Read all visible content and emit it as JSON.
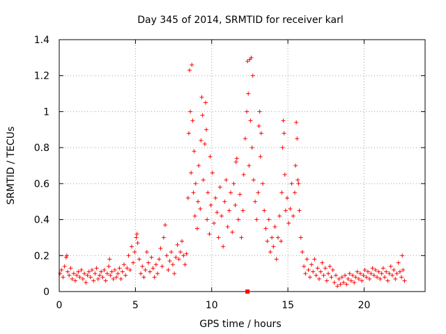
{
  "chart_data": {
    "type": "scatter",
    "title": "Day 345 of 2014, SRMTID for receiver karl",
    "xlabel": "GPS time / hours",
    "ylabel": "SRMTID / TECUs",
    "xlim": [
      0,
      24
    ],
    "ylim": [
      0,
      1.4
    ],
    "xticks": [
      0,
      5,
      10,
      15,
      20
    ],
    "yticks": [
      0,
      0.2,
      0.4,
      0.6,
      0.8,
      1.0,
      1.2,
      1.4
    ],
    "xtick_labels": [
      "0",
      "5",
      "10",
      "15",
      "20"
    ],
    "ytick_labels": [
      "0",
      "0.2",
      "0.4",
      "0.6",
      "0.8",
      "1",
      "1.2",
      "1.4"
    ],
    "grid": true,
    "marker": "+",
    "color": "#ff0000",
    "series": [
      {
        "name": "SRMTID",
        "points": [
          [
            0.05,
            0.1
          ],
          [
            0.15,
            0.12
          ],
          [
            0.25,
            0.08
          ],
          [
            0.35,
            0.14
          ],
          [
            0.45,
            0.19
          ],
          [
            0.5,
            0.2
          ],
          [
            0.55,
            0.11
          ],
          [
            0.65,
            0.09
          ],
          [
            0.75,
            0.13
          ],
          [
            0.85,
            0.07
          ],
          [
            0.95,
            0.1
          ],
          [
            1.05,
            0.06
          ],
          [
            1.15,
            0.09
          ],
          [
            1.25,
            0.11
          ],
          [
            1.35,
            0.08
          ],
          [
            1.45,
            0.12
          ],
          [
            1.55,
            0.07
          ],
          [
            1.65,
            0.1
          ],
          [
            1.75,
            0.05
          ],
          [
            1.85,
            0.09
          ],
          [
            1.95,
            0.11
          ],
          [
            2.05,
            0.08
          ],
          [
            2.15,
            0.12
          ],
          [
            2.25,
            0.06
          ],
          [
            2.35,
            0.1
          ],
          [
            2.45,
            0.13
          ],
          [
            2.55,
            0.07
          ],
          [
            2.65,
            0.09
          ],
          [
            2.75,
            0.11
          ],
          [
            2.85,
            0.08
          ],
          [
            2.95,
            0.12
          ],
          [
            3.05,
            0.06
          ],
          [
            3.15,
            0.1
          ],
          [
            3.25,
            0.14
          ],
          [
            3.3,
            0.18
          ],
          [
            3.35,
            0.09
          ],
          [
            3.45,
            0.11
          ],
          [
            3.55,
            0.07
          ],
          [
            3.65,
            0.12
          ],
          [
            3.75,
            0.08
          ],
          [
            3.85,
            0.1
          ],
          [
            3.95,
            0.13
          ],
          [
            4.05,
            0.07
          ],
          [
            4.15,
            0.11
          ],
          [
            4.25,
            0.15
          ],
          [
            4.35,
            0.09
          ],
          [
            4.45,
            0.13
          ],
          [
            4.55,
            0.2
          ],
          [
            4.65,
            0.12
          ],
          [
            4.75,
            0.25
          ],
          [
            4.85,
            0.16
          ],
          [
            4.95,
            0.22
          ],
          [
            5.05,
            0.3
          ],
          [
            5.1,
            0.32
          ],
          [
            5.15,
            0.27
          ],
          [
            5.25,
            0.18
          ],
          [
            5.35,
            0.1
          ],
          [
            5.45,
            0.14
          ],
          [
            5.55,
            0.08
          ],
          [
            5.65,
            0.12
          ],
          [
            5.75,
            0.22
          ],
          [
            5.85,
            0.16
          ],
          [
            5.95,
            0.11
          ],
          [
            6.05,
            0.19
          ],
          [
            6.15,
            0.13
          ],
          [
            6.25,
            0.08
          ],
          [
            6.35,
            0.15
          ],
          [
            6.45,
            0.1
          ],
          [
            6.55,
            0.18
          ],
          [
            6.65,
            0.24
          ],
          [
            6.75,
            0.14
          ],
          [
            6.85,
            0.3
          ],
          [
            6.95,
            0.37
          ],
          [
            7.05,
            0.2
          ],
          [
            7.15,
            0.12
          ],
          [
            7.25,
            0.17
          ],
          [
            7.35,
            0.22
          ],
          [
            7.45,
            0.15
          ],
          [
            7.55,
            0.1
          ],
          [
            7.65,
            0.19
          ],
          [
            7.75,
            0.26
          ],
          [
            7.85,
            0.18
          ],
          [
            7.95,
            0.22
          ],
          [
            8.05,
            0.28
          ],
          [
            8.15,
            0.2
          ],
          [
            8.25,
            0.15
          ],
          [
            8.35,
            0.21
          ],
          [
            8.45,
            0.52
          ],
          [
            8.5,
            0.88
          ],
          [
            8.55,
            1.23
          ],
          [
            8.6,
            1.0
          ],
          [
            8.65,
            0.66
          ],
          [
            8.7,
            1.26
          ],
          [
            8.75,
            0.95
          ],
          [
            8.8,
            0.55
          ],
          [
            8.85,
            0.78
          ],
          [
            8.9,
            0.42
          ],
          [
            8.95,
            0.6
          ],
          [
            9.05,
            0.35
          ],
          [
            9.1,
            0.5
          ],
          [
            9.15,
            0.7
          ],
          [
            9.25,
            0.46
          ],
          [
            9.3,
            0.84
          ],
          [
            9.35,
            1.08
          ],
          [
            9.4,
            0.98
          ],
          [
            9.45,
            0.62
          ],
          [
            9.55,
            0.82
          ],
          [
            9.6,
            1.05
          ],
          [
            9.65,
            0.9
          ],
          [
            9.7,
            0.4
          ],
          [
            9.75,
            0.55
          ],
          [
            9.85,
            0.32
          ],
          [
            9.9,
            0.75
          ],
          [
            9.95,
            0.48
          ],
          [
            10.05,
            0.66
          ],
          [
            10.15,
            0.38
          ],
          [
            10.25,
            0.52
          ],
          [
            10.35,
            0.44
          ],
          [
            10.45,
            0.3
          ],
          [
            10.55,
            0.58
          ],
          [
            10.65,
            0.42
          ],
          [
            10.75,
            0.25
          ],
          [
            10.85,
            0.5
          ],
          [
            10.95,
            0.62
          ],
          [
            11.05,
            0.36
          ],
          [
            11.15,
            0.45
          ],
          [
            11.25,
            0.55
          ],
          [
            11.35,
            0.33
          ],
          [
            11.45,
            0.6
          ],
          [
            11.55,
            0.48
          ],
          [
            11.6,
            0.72
          ],
          [
            11.65,
            0.74
          ],
          [
            11.75,
            0.4
          ],
          [
            11.85,
            0.54
          ],
          [
            11.95,
            0.3
          ],
          [
            12.05,
            0.45
          ],
          [
            12.1,
            0.65
          ],
          [
            12.2,
            0.85
          ],
          [
            12.3,
            1.0
          ],
          [
            12.35,
            1.28
          ],
          [
            12.4,
            1.1
          ],
          [
            12.45,
            0.7
          ],
          [
            12.5,
            1.29
          ],
          [
            12.55,
            0.95
          ],
          [
            12.6,
            1.3
          ],
          [
            12.65,
            0.8
          ],
          [
            12.7,
            1.2
          ],
          [
            12.75,
            0.62
          ],
          [
            12.85,
            0.5
          ],
          [
            12.95,
            0.4
          ],
          [
            13.05,
            0.55
          ],
          [
            13.1,
            0.92
          ],
          [
            13.15,
            1.0
          ],
          [
            13.2,
            0.75
          ],
          [
            13.25,
            0.88
          ],
          [
            13.35,
            0.6
          ],
          [
            13.45,
            0.45
          ],
          [
            13.55,
            0.35
          ],
          [
            13.65,
            0.28
          ],
          [
            13.75,
            0.4
          ],
          [
            13.85,
            0.22
          ],
          [
            13.95,
            0.3
          ],
          [
            14.05,
            0.25
          ],
          [
            14.15,
            0.36
          ],
          [
            14.25,
            0.18
          ],
          [
            14.35,
            0.3
          ],
          [
            14.45,
            0.42
          ],
          [
            14.55,
            0.28
          ],
          [
            14.6,
            0.55
          ],
          [
            14.65,
            0.8
          ],
          [
            14.7,
            0.95
          ],
          [
            14.75,
            0.88
          ],
          [
            14.8,
            0.65
          ],
          [
            14.85,
            0.45
          ],
          [
            14.95,
            0.52
          ],
          [
            15.05,
            0.38
          ],
          [
            15.15,
            0.46
          ],
          [
            15.25,
            0.6
          ],
          [
            15.35,
            0.42
          ],
          [
            15.45,
            0.55
          ],
          [
            15.5,
            0.7
          ],
          [
            15.55,
            0.94
          ],
          [
            15.6,
            0.85
          ],
          [
            15.65,
            0.62
          ],
          [
            15.7,
            0.6
          ],
          [
            15.75,
            0.45
          ],
          [
            15.85,
            0.3
          ],
          [
            15.95,
            0.22
          ],
          [
            16.05,
            0.14
          ],
          [
            16.15,
            0.1
          ],
          [
            16.25,
            0.18
          ],
          [
            16.35,
            0.12
          ],
          [
            16.45,
            0.08
          ],
          [
            16.55,
            0.15
          ],
          [
            16.65,
            0.11
          ],
          [
            16.75,
            0.18
          ],
          [
            16.85,
            0.09
          ],
          [
            16.95,
            0.13
          ],
          [
            17.05,
            0.07
          ],
          [
            17.15,
            0.11
          ],
          [
            17.25,
            0.16
          ],
          [
            17.35,
            0.09
          ],
          [
            17.45,
            0.13
          ],
          [
            17.55,
            0.06
          ],
          [
            17.65,
            0.1
          ],
          [
            17.75,
            0.14
          ],
          [
            17.85,
            0.08
          ],
          [
            17.95,
            0.12
          ],
          [
            18.05,
            0.05
          ],
          [
            18.15,
            0.09
          ],
          [
            18.25,
            0.03
          ],
          [
            18.35,
            0.07
          ],
          [
            18.45,
            0.04
          ],
          [
            18.55,
            0.08
          ],
          [
            18.65,
            0.05
          ],
          [
            18.75,
            0.09
          ],
          [
            18.85,
            0.04
          ],
          [
            18.95,
            0.07
          ],
          [
            19.05,
            0.1
          ],
          [
            19.15,
            0.06
          ],
          [
            19.25,
            0.09
          ],
          [
            19.35,
            0.05
          ],
          [
            19.45,
            0.08
          ],
          [
            19.55,
            0.11
          ],
          [
            19.65,
            0.07
          ],
          [
            19.75,
            0.1
          ],
          [
            19.85,
            0.06
          ],
          [
            19.95,
            0.09
          ],
          [
            20.05,
            0.12
          ],
          [
            20.15,
            0.08
          ],
          [
            20.25,
            0.11
          ],
          [
            20.35,
            0.07
          ],
          [
            20.45,
            0.1
          ],
          [
            20.55,
            0.13
          ],
          [
            20.65,
            0.09
          ],
          [
            20.75,
            0.12
          ],
          [
            20.85,
            0.08
          ],
          [
            20.95,
            0.11
          ],
          [
            21.05,
            0.07
          ],
          [
            21.15,
            0.1
          ],
          [
            21.25,
            0.13
          ],
          [
            21.35,
            0.08
          ],
          [
            21.45,
            0.11
          ],
          [
            21.55,
            0.06
          ],
          [
            21.65,
            0.1
          ],
          [
            21.75,
            0.14
          ],
          [
            21.85,
            0.09
          ],
          [
            21.95,
            0.12
          ],
          [
            22.05,
            0.07
          ],
          [
            22.15,
            0.1
          ],
          [
            22.25,
            0.16
          ],
          [
            22.35,
            0.11
          ],
          [
            22.45,
            0.08
          ],
          [
            22.5,
            0.2
          ],
          [
            22.55,
            0.12
          ],
          [
            22.65,
            0.06
          ]
        ]
      }
    ],
    "annotations": [
      {
        "type": "square-marker",
        "x": 12.35,
        "y": 0.0
      }
    ]
  }
}
